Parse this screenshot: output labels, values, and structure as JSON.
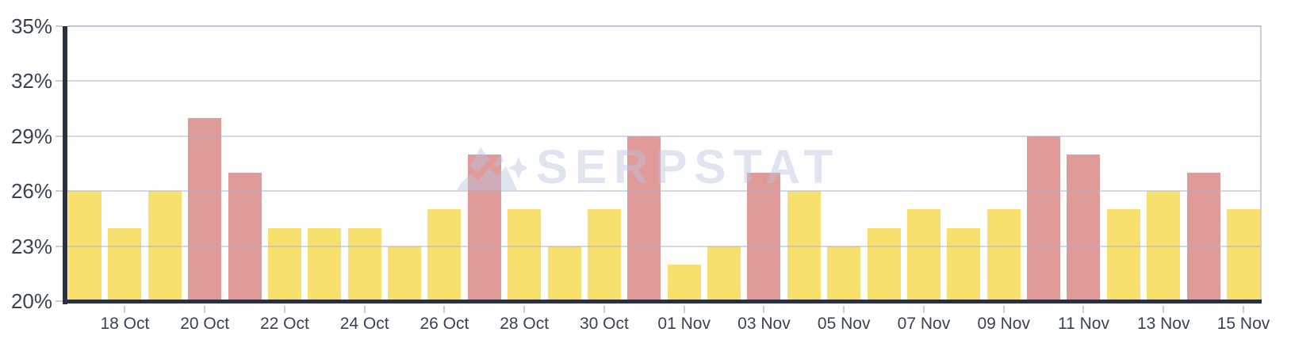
{
  "watermark": {
    "text": "SERPSTAT"
  },
  "colors": {
    "yellow_bar": "#F8E06E",
    "red_bar": "#E09B99",
    "axis": "#2B3140",
    "gridline": "#D7DCE6",
    "tick": "#C8CEDB",
    "label_text": "#3B4252",
    "plot_border_right": "#C9CFDB",
    "watermark": "#DFE4F0",
    "background": "#FFFFFF"
  },
  "chart_data": {
    "type": "bar",
    "title": "",
    "xlabel": "",
    "ylabel": "",
    "unit": "%",
    "ylim": [
      20,
      35
    ],
    "yticks": [
      35,
      32,
      29,
      26,
      23,
      20
    ],
    "y_tick_labels": [
      "35%",
      "32%",
      "29%",
      "26%",
      "23%",
      "20%"
    ],
    "x_tick_labels": [
      "18 Oct",
      "20 Oct",
      "22 Oct",
      "24 Oct",
      "26 Oct",
      "28 Oct",
      "30 Oct",
      "01 Nov",
      "03 Nov",
      "05 Nov",
      "07 Nov",
      "09 Nov",
      "11 Nov",
      "13 Nov",
      "15 Nov"
    ],
    "grid": true,
    "legend": "none",
    "categories": [
      "17 Oct",
      "18 Oct",
      "19 Oct",
      "20 Oct",
      "21 Oct",
      "22 Oct",
      "23 Oct",
      "24 Oct",
      "25 Oct",
      "26 Oct",
      "27 Oct",
      "28 Oct",
      "29 Oct",
      "30 Oct",
      "31 Oct",
      "01 Nov",
      "02 Nov",
      "03 Nov",
      "04 Nov",
      "05 Nov",
      "06 Nov",
      "07 Nov",
      "08 Nov",
      "09 Nov",
      "10 Nov",
      "11 Nov",
      "12 Nov",
      "13 Nov",
      "14 Nov",
      "15 Nov"
    ],
    "values": [
      26,
      24,
      26,
      30,
      27,
      24,
      24,
      24,
      23,
      25,
      28,
      25,
      23,
      25,
      29,
      22,
      23,
      27,
      26,
      23,
      24,
      25,
      24,
      25,
      29,
      28,
      25,
      26,
      27,
      25
    ],
    "bar_colors": [
      "yellow",
      "yellow",
      "yellow",
      "red",
      "red",
      "yellow",
      "yellow",
      "yellow",
      "yellow",
      "yellow",
      "red",
      "yellow",
      "yellow",
      "yellow",
      "red",
      "yellow",
      "yellow",
      "red",
      "yellow",
      "yellow",
      "yellow",
      "yellow",
      "yellow",
      "yellow",
      "red",
      "red",
      "yellow",
      "yellow",
      "red",
      "yellow"
    ]
  }
}
